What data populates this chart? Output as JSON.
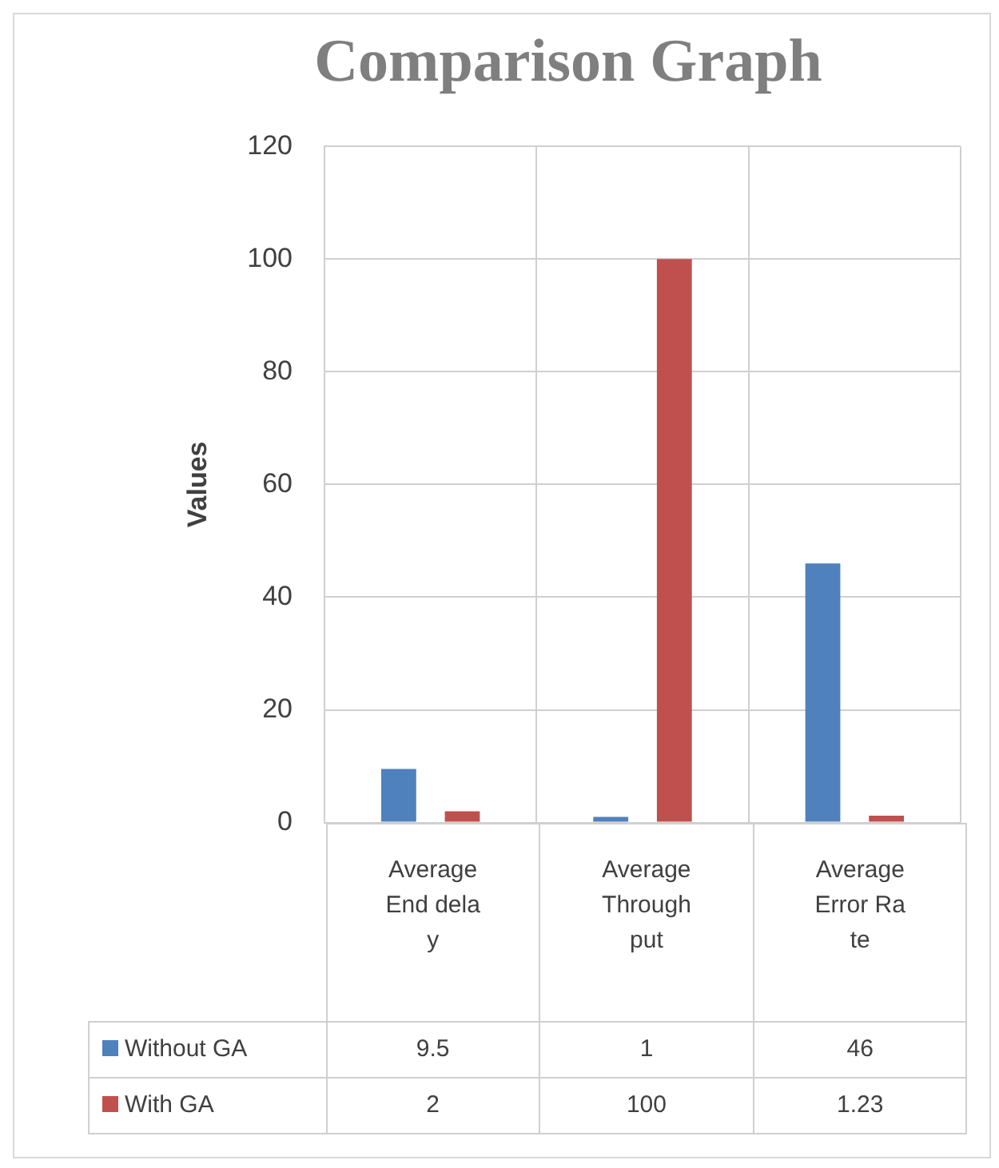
{
  "chart_data": {
    "type": "bar",
    "title": "Comparison Graph",
    "ylabel": "Values",
    "categories": [
      "Average End delay",
      "Average Throughput",
      "Average Error Rate"
    ],
    "series": [
      {
        "name": "Without GA",
        "color": "#4f81bd",
        "values": [
          9.5,
          1,
          46
        ]
      },
      {
        "name": "With GA",
        "color": "#c0504d",
        "values": [
          2,
          100,
          1.23
        ]
      }
    ],
    "ylim": [
      0,
      120
    ],
    "yticks": [
      0,
      20,
      40,
      60,
      80,
      100,
      120
    ],
    "grid": true,
    "legend": "bottom",
    "data_labels": true
  }
}
